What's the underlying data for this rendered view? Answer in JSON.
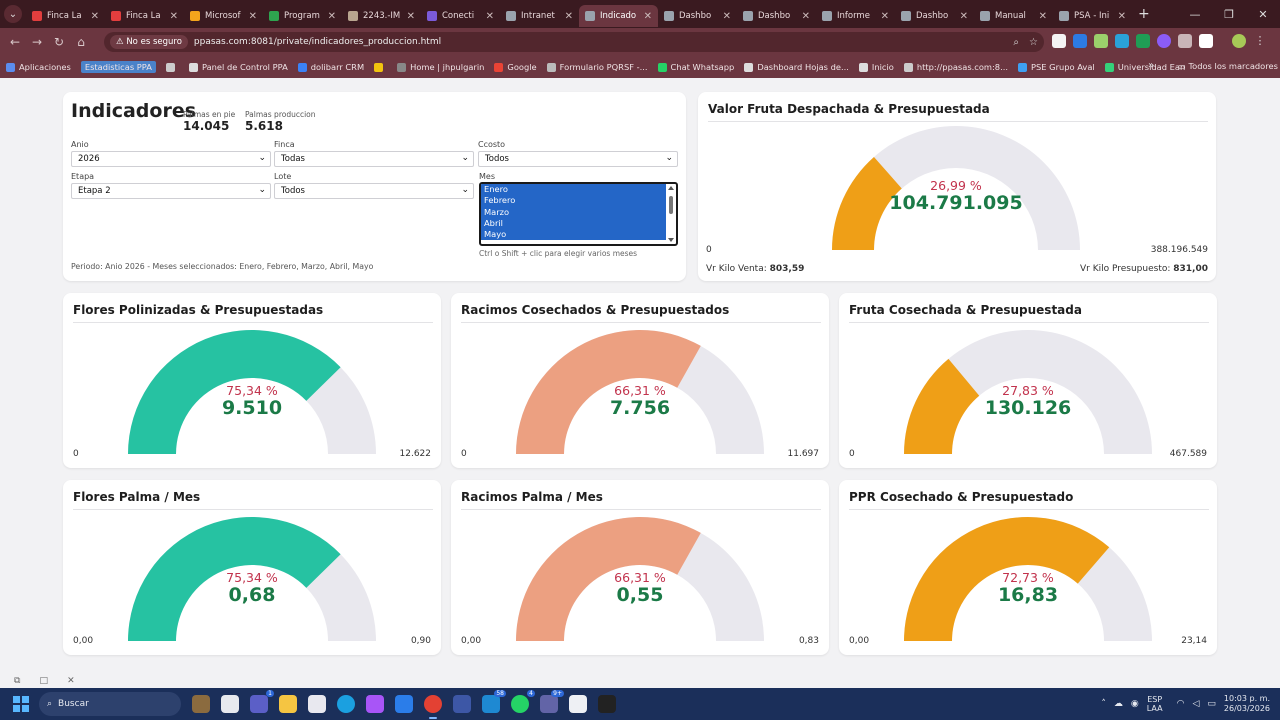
{
  "browser": {
    "tabs": [
      {
        "label": "Finca La",
        "color": "#e23e3e"
      },
      {
        "label": "Finca La",
        "color": "#e23e3e"
      },
      {
        "label": "Microsof",
        "color": "#f3a41c"
      },
      {
        "label": "Program",
        "color": "#2ea44f"
      },
      {
        "label": "2243.-IM",
        "color": "#b9a58f"
      },
      {
        "label": "Conecti",
        "color": "#7b5bd9"
      },
      {
        "label": "Intranet",
        "color": "#9aa3ad"
      },
      {
        "label": "Indicado",
        "color": "#9aa3ad"
      },
      {
        "label": "Dashbo",
        "color": "#9aa3ad"
      },
      {
        "label": "Dashbo",
        "color": "#9aa3ad"
      },
      {
        "label": "Informe",
        "color": "#9aa3ad"
      },
      {
        "label": "Dashbo",
        "color": "#9aa3ad"
      },
      {
        "label": "Manual",
        "color": "#9aa3ad"
      },
      {
        "label": "PSA - Ini",
        "color": "#9aa3ad"
      }
    ],
    "active_tab_index": 7,
    "security_label": "No es seguro",
    "url": "ppasas.com:8081/private/indicadores_produccion.html",
    "bookmarks": [
      "Aplicaciones",
      "Estadisticas PPA",
      "",
      "Panel de Control PPA",
      "dolibarr CRM",
      "",
      "Home | jhpulgarin",
      "Google",
      "Formulario PQRSF -...",
      "Chat Whatsapp",
      "Dashboard Hojas de...",
      "Inicio",
      "http://ppasas.com:8...",
      "PSE Grupo Aval",
      "Universidad Ean"
    ],
    "bookmarks_folder": "Todos los marcadores"
  },
  "filters": {
    "title": "Indicadores",
    "palmas_en_pie_label": "Palmas en pie",
    "palmas_en_pie": "14.045",
    "palmas_produccion_label": "Palmas produccion",
    "palmas_produccion": "5.618",
    "anio_label": "Anio",
    "anio": "2026",
    "finca_label": "Finca",
    "finca": "Todas",
    "ccosto_label": "Ccosto",
    "ccosto": "Todos",
    "etapa_label": "Etapa",
    "etapa": "Etapa 2",
    "lote_label": "Lote",
    "lote": "Todos",
    "mes_label": "Mes",
    "meses": [
      "Enero",
      "Febrero",
      "Marzo",
      "Abril",
      "Mayo"
    ],
    "hint": "Ctrl o Shift + clic para elegir varios meses",
    "periodo": "Periodo: Anio 2026 - Meses seleccionados: Enero, Febrero, Marzo, Abril, Mayo"
  },
  "gauges": [
    {
      "title": "Valor Fruta Despachada & Presupuestada",
      "pct": "26,99 %",
      "fraction": 0.2699,
      "value": "104.791.095",
      "min": "0",
      "max": "388.196.549",
      "color": "#ef9f17",
      "footer_left_label": "Vr Kilo Venta:",
      "footer_left_value": "803,59",
      "footer_right_label": "Vr Kilo Presupuesto:",
      "footer_right_value": "831,00"
    },
    {
      "title": "Flores Polinizadas & Presupuestadas",
      "pct": "75,34 %",
      "fraction": 0.7534,
      "value": "9.510",
      "min": "0",
      "max": "12.622",
      "color": "#26c2a2"
    },
    {
      "title": "Racimos Cosechados & Presupuestados",
      "pct": "66,31 %",
      "fraction": 0.6631,
      "value": "7.756",
      "min": "0",
      "max": "11.697",
      "color": "#eca081"
    },
    {
      "title": "Fruta Cosechada & Presupuestada",
      "pct": "27,83 %",
      "fraction": 0.2783,
      "value": "130.126",
      "min": "0",
      "max": "467.589",
      "color": "#ef9f17"
    },
    {
      "title": "Flores Palma / Mes",
      "pct": "75,34 %",
      "fraction": 0.7534,
      "value": "0,68",
      "min": "0,00",
      "max": "0,90",
      "color": "#26c2a2"
    },
    {
      "title": "Racimos Palma / Mes",
      "pct": "66,31 %",
      "fraction": 0.6631,
      "value": "0,55",
      "min": "0,00",
      "max": "0,83",
      "color": "#eca081"
    },
    {
      "title": "PPR Cosechado & Presupuestado",
      "pct": "72,73 %",
      "fraction": 0.7273,
      "value": "16,83",
      "min": "0,00",
      "max": "23,14",
      "color": "#ef9f17"
    }
  ],
  "track_color": "#e9e8ee",
  "taskbar": {
    "search_placeholder": "Buscar",
    "lang_top": "ESP",
    "lang_bottom": "LAA",
    "time": "10:03 p. m.",
    "date": "26/03/2026"
  }
}
